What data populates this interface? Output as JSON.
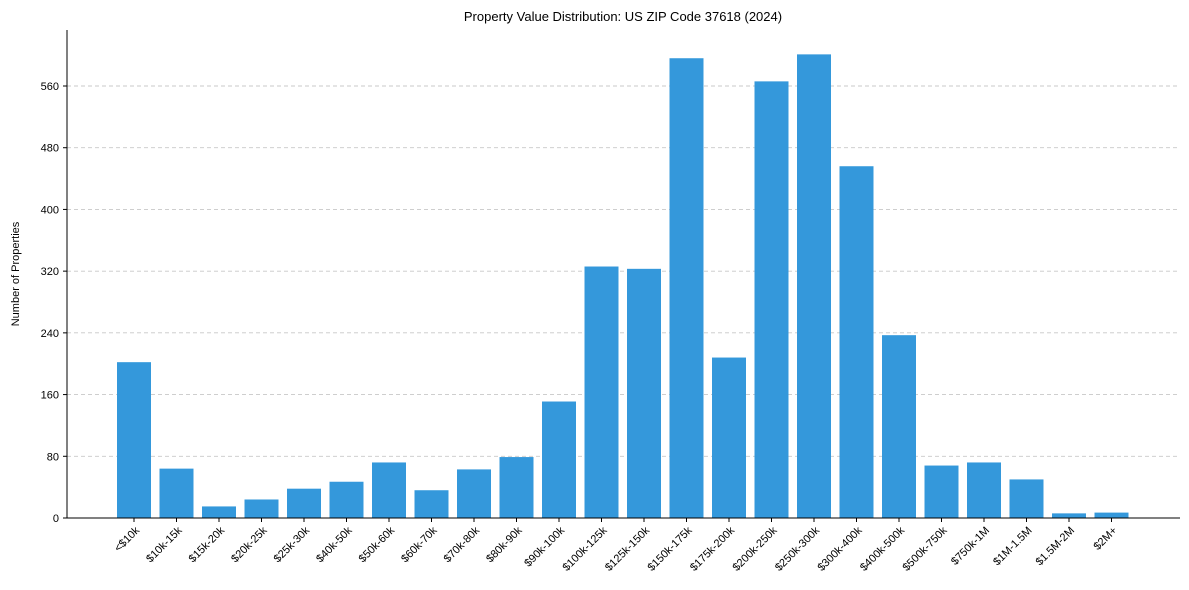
{
  "chart_data": {
    "type": "bar",
    "title": "Property Value Distribution: US ZIP Code 37618 (2024)",
    "xlabel": "",
    "ylabel": "Number of Properties",
    "categories": [
      "<$10k",
      "$10k-15k",
      "$15k-20k",
      "$20k-25k",
      "$25k-30k",
      "$40k-50k",
      "$50k-60k",
      "$60k-70k",
      "$70k-80k",
      "$80k-90k",
      "$90k-100k",
      "$100k-125k",
      "$125k-150k",
      "$150k-175k",
      "$175k-200k",
      "$200k-250k",
      "$250k-300k",
      "$300k-400k",
      "$400k-500k",
      "$500k-750k",
      "$750k-1M",
      "$1M-1.5M",
      "$1.5M-2M",
      "$2M+"
    ],
    "values": [
      202,
      64,
      15,
      24,
      38,
      47,
      72,
      36,
      63,
      79,
      151,
      326,
      323,
      596,
      208,
      566,
      601,
      456,
      237,
      68,
      72,
      50,
      6,
      7
    ],
    "yticks": [
      0,
      80,
      160,
      240,
      320,
      400,
      480,
      560
    ],
    "ylim": [
      0,
      632
    ],
    "grid": "y-dashed",
    "color": "#3498db"
  }
}
